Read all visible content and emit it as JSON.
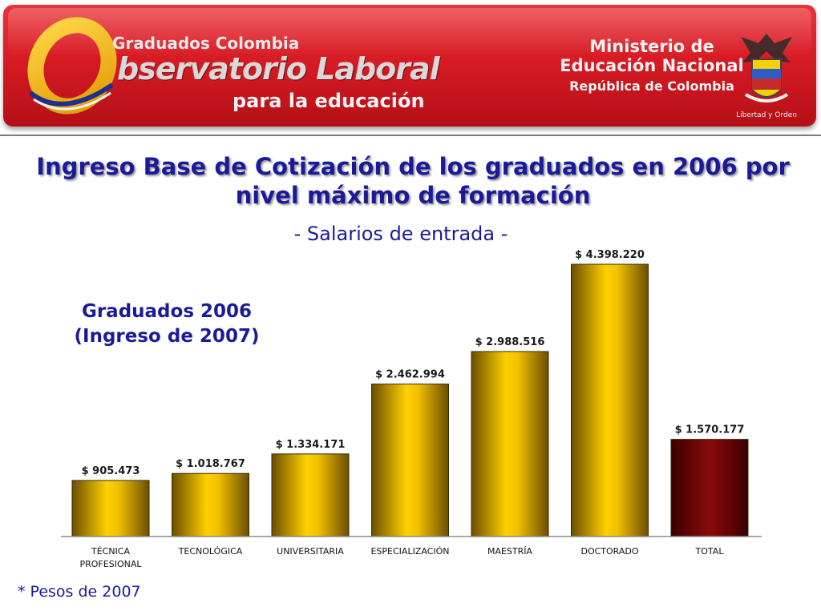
{
  "header": {
    "logo": {
      "line1": "Graduados Colombia",
      "line2": "bservatorio Laboral",
      "line3": "para la educación",
      "colors": {
        "ring": "#f5b400",
        "accent": "#1f2f8f"
      }
    },
    "ministry": {
      "line1": "Ministerio de",
      "line2": "Educación Nacional",
      "line3": "República de Colombia",
      "crest_motto": "Libertad y Orden"
    },
    "banner_color": "#d71b24"
  },
  "chart_data": {
    "type": "bar",
    "title": "Ingreso Base de Cotización de los graduados en 2006 por nivel máximo de formación",
    "subtitle": "- Salarios de entrada -",
    "annotation": [
      "Graduados 2006",
      "(Ingreso de 2007)"
    ],
    "categories": [
      "TÉCNICA PROFESIONAL",
      "TECNOLÓGICA",
      "UNIVERSITARIA",
      "ESPECIALIZACIÓN",
      "MAESTRÍA",
      "DOCTORADO",
      "TOTAL"
    ],
    "category_lines": [
      [
        "TÉCNICA",
        "PROFESIONAL"
      ],
      [
        "TECNOLÓGICA"
      ],
      [
        "UNIVERSITARIA"
      ],
      [
        "ESPECIALIZACIÓN"
      ],
      [
        "MAESTRÍA"
      ],
      [
        "DOCTORADO"
      ],
      [
        "TOTAL"
      ]
    ],
    "values": [
      905473,
      1018767,
      1334171,
      2462994,
      2988516,
      4398220,
      1570177
    ],
    "value_labels": [
      "$ 905.473",
      "$ 1.018.767",
      "$ 1.334.171",
      "$ 2.462.994",
      "$ 2.988.516",
      "$ 4.398.220",
      "$ 1.570.177"
    ],
    "ylim": [
      0,
      4500000
    ],
    "xlabel": "",
    "ylabel": "",
    "grid": false,
    "colors": {
      "bar": "#f2c000",
      "bar_dark": "#6b4e00",
      "total": "#8b0a0a",
      "total_dark": "#3a0000"
    }
  },
  "footnote": "* Pesos de 2007"
}
